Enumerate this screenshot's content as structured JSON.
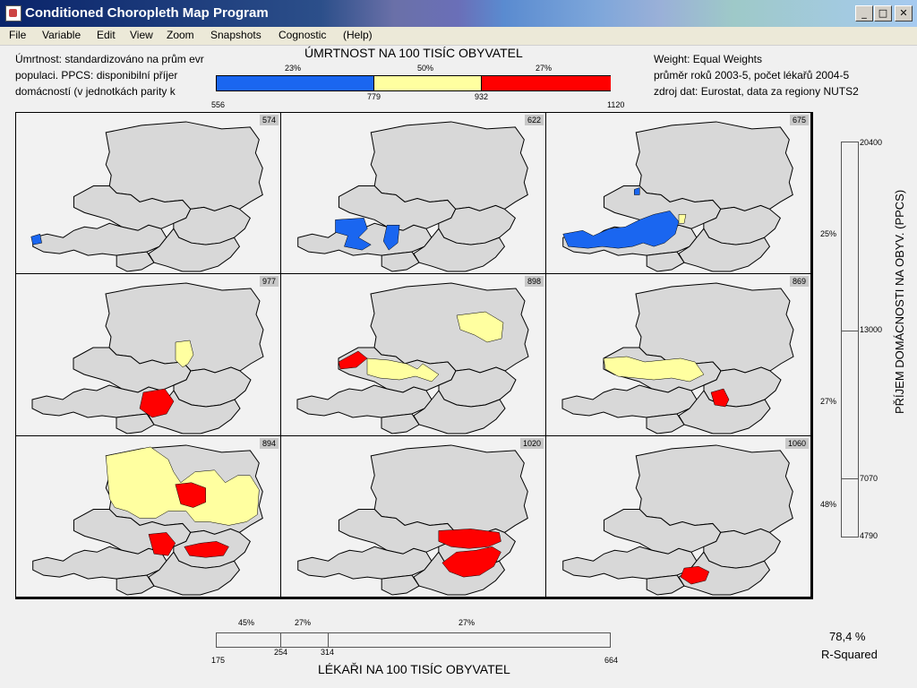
{
  "window": {
    "title": "Conditioned Choropleth Map Program"
  },
  "menu": [
    "File",
    "Variable",
    "Edit",
    "View",
    "Zoom",
    "Snapshots",
    "Cognostic",
    "(Help)"
  ],
  "left_note": [
    "Úmrtnost: standardizováno na prům  evr",
    "populaci. PPCS: disponibilní příjer",
    "domácností (v jednotkách parity k"
  ],
  "right_note": [
    "Weight: Equal Weights",
    "průměr roků 2003-5, počet lékařů 2004-5",
    "zdroj dat: Eurostat, data za regiony NUTS2"
  ],
  "top_legend": {
    "title": "ÚMRTNOST NA 100 TISÍC OBYVATEL",
    "percents": [
      "23%",
      "50%",
      "27%"
    ],
    "ticks": [
      "556",
      "779",
      "932",
      "1120"
    ],
    "colors": [
      "#1a66f0",
      "#ffffa0",
      "#ff0000"
    ]
  },
  "right_slider": {
    "title": "PŘÍJEM DOMÁCNOSTI NA OBYV. (PPCS)",
    "ticks": [
      "20400",
      "13000",
      "7070",
      "4790"
    ],
    "percents": [
      "25%",
      "27%",
      "48%"
    ]
  },
  "bottom_slider": {
    "title": "LÉKAŘI NA 100 TISÍC OBYVATEL",
    "ticks": [
      "175",
      "254",
      "314",
      "664"
    ],
    "percents": [
      "45%",
      "27%",
      "27%"
    ]
  },
  "r_squared": {
    "value": "78,4 %",
    "label": "R-Squared"
  },
  "panels": [
    "574",
    "622",
    "675",
    "977",
    "898",
    "869",
    "894",
    "1020",
    "1060"
  ],
  "colors": {
    "blue": "#1a66f0",
    "yellow": "#ffffa0",
    "red": "#ff0000",
    "gray": "#d8d8d8"
  }
}
